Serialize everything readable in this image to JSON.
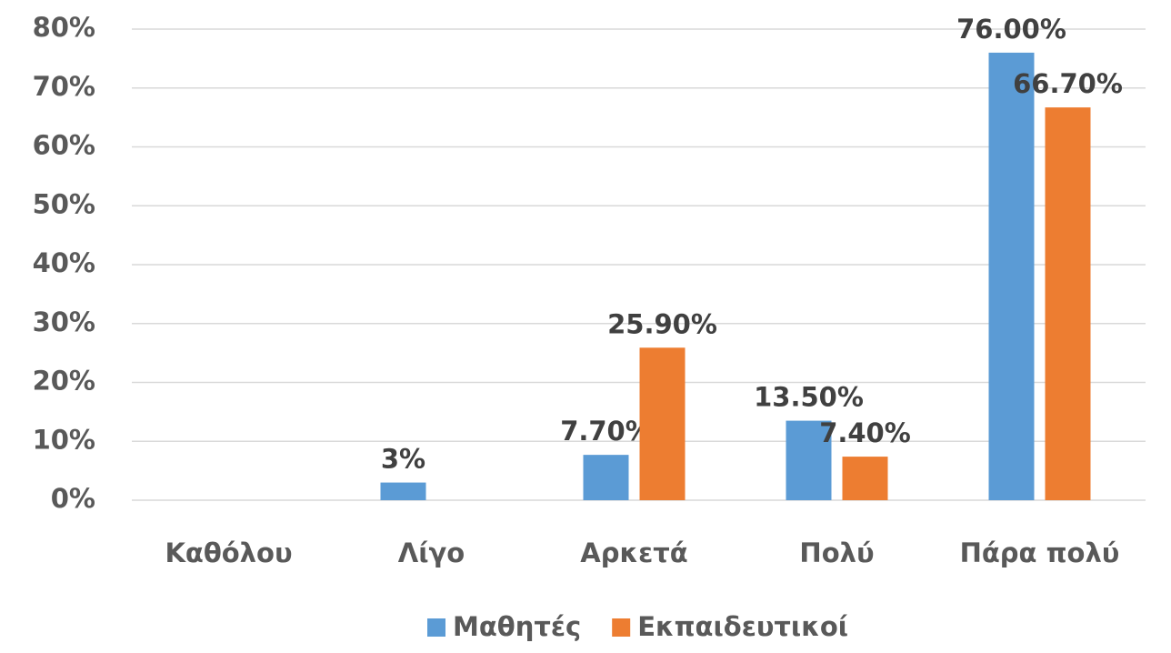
{
  "chart_data": {
    "type": "bar",
    "categories": [
      "Καθόλου",
      "Λίγο",
      "Αρκετά",
      "Πολύ",
      "Πάρα πολύ"
    ],
    "series": [
      {
        "name": "Μαθητές",
        "color": "#5b9bd5",
        "values": [
          null,
          3,
          7.7,
          13.5,
          76
        ],
        "value_labels": [
          null,
          "3%",
          "7.70%",
          "13.50%",
          "76.00%"
        ]
      },
      {
        "name": "Εκπαιδευτικοί",
        "color": "#ed7d31",
        "values": [
          null,
          null,
          25.9,
          7.4,
          66.7
        ],
        "value_labels": [
          null,
          null,
          "25.90%",
          "7.40%",
          "66.70%"
        ]
      }
    ],
    "ylim": [
      0,
      80
    ],
    "yticks": [
      {
        "value": 0,
        "label": "0%"
      },
      {
        "value": 10,
        "label": "10%"
      },
      {
        "value": 20,
        "label": "20%"
      },
      {
        "value": 30,
        "label": "30%"
      },
      {
        "value": 40,
        "label": "40%"
      },
      {
        "value": 50,
        "label": "50%"
      },
      {
        "value": 60,
        "label": "60%"
      },
      {
        "value": 70,
        "label": "70%"
      },
      {
        "value": 80,
        "label": "80%"
      }
    ],
    "grid": true,
    "legend": "bottom"
  }
}
